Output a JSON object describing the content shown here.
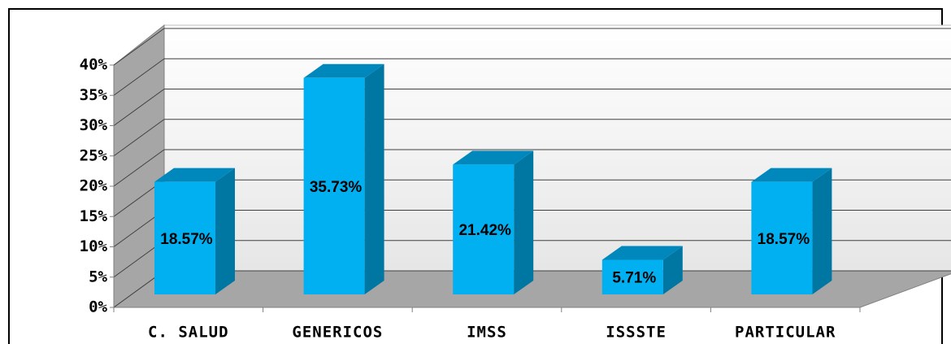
{
  "chart_data": {
    "type": "bar3d",
    "categories": [
      "C. SALUD",
      "GENERICOS",
      "IMSS",
      "ISSSTE",
      "PARTICULAR"
    ],
    "values": [
      18.57,
      35.73,
      21.42,
      5.71,
      18.57
    ],
    "value_labels": [
      "18.57%",
      "35.73%",
      "21.42%",
      "5.71%",
      "18.57%"
    ],
    "color": "#00b0f0",
    "ylim": [
      0,
      40
    ],
    "yticks": [
      {
        "value": 0,
        "label": "0%"
      },
      {
        "value": 5,
        "label": "5%"
      },
      {
        "value": 10,
        "label": "10%"
      },
      {
        "value": 15,
        "label": "15%"
      },
      {
        "value": 20,
        "label": "20%"
      },
      {
        "value": 25,
        "label": "25%"
      },
      {
        "value": 30,
        "label": "30%"
      },
      {
        "value": 35,
        "label": "35%"
      },
      {
        "value": 40,
        "label": "40%"
      }
    ],
    "grid": true
  }
}
